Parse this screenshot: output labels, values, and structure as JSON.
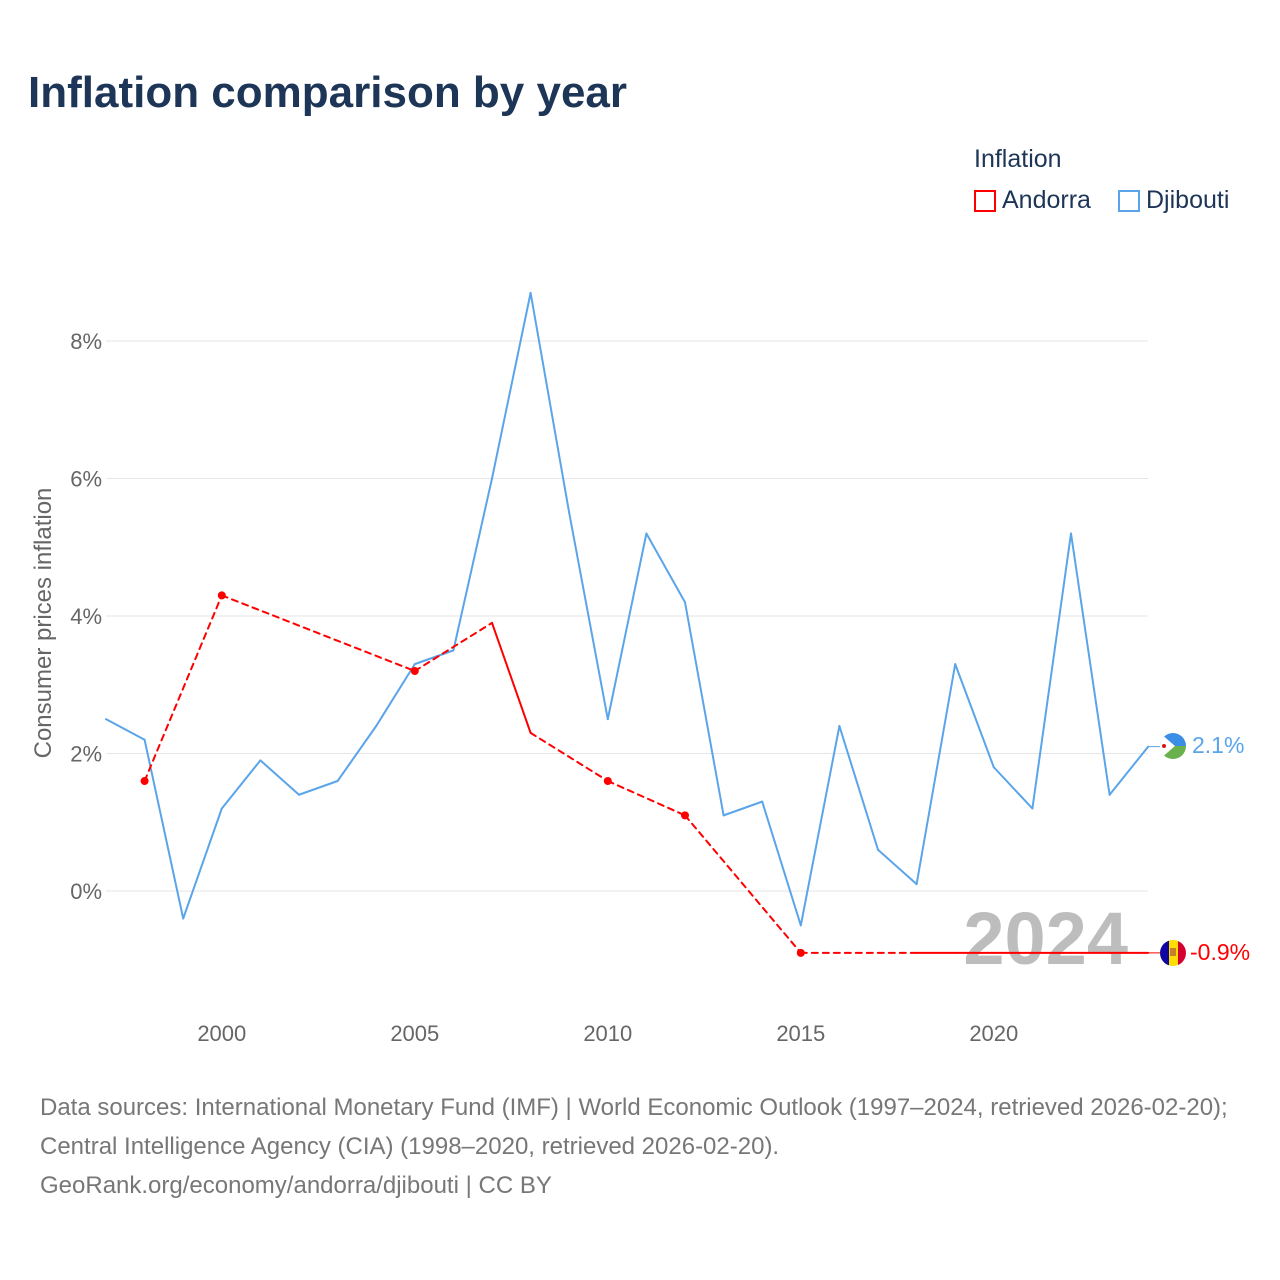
{
  "title": "Inflation comparison by year",
  "legend": {
    "title": "Inflation",
    "items": [
      {
        "name": "Andorra",
        "color": "#ff0000"
      },
      {
        "name": "Djibouti",
        "color": "#5aa5ea"
      }
    ]
  },
  "watermark_year": "2024",
  "end_labels": {
    "djibouti": "2.1%",
    "andorra": "-0.9%"
  },
  "sources": "Data sources: International Monetary Fund (IMF) | World Economic Outlook (1997–2024, retrieved 2026-02-20); Central Intelligence Agency (CIA) (1998–2020, retrieved 2026-02-20).",
  "credit": "GeoRank.org/economy/andorra/djibouti | CC BY",
  "chart_data": {
    "type": "line",
    "title": "Inflation comparison by year",
    "xlabel": "",
    "ylabel": "Consumer prices inflation",
    "xlim": [
      1997,
      2024
    ],
    "ylim": [
      -1.6,
      9.0
    ],
    "xticks": [
      2000,
      2005,
      2010,
      2015,
      2020
    ],
    "yticks": [
      0,
      2,
      4,
      6,
      8
    ],
    "ytick_labels": [
      "0%",
      "2%",
      "4%",
      "6%",
      "8%"
    ],
    "grid": true,
    "legend_position": "top-right",
    "series": [
      {
        "name": "Andorra",
        "color": "#ff0000",
        "x": [
          1998,
          2000,
          2005,
          2007,
          2008,
          2010,
          2012,
          2015,
          2018,
          2019,
          2020,
          2021,
          2022,
          2023,
          2024
        ],
        "values": [
          1.6,
          4.3,
          3.2,
          3.9,
          2.3,
          1.6,
          1.1,
          -0.9,
          -0.9,
          -0.9,
          -0.9,
          -0.9,
          -0.9,
          -0.9,
          -0.9
        ]
      },
      {
        "name": "Djibouti",
        "color": "#5aa5ea",
        "x": [
          1997,
          1998,
          1999,
          2000,
          2001,
          2002,
          2003,
          2004,
          2005,
          2006,
          2007,
          2008,
          2009,
          2010,
          2011,
          2012,
          2013,
          2014,
          2015,
          2016,
          2017,
          2018,
          2019,
          2020,
          2021,
          2022,
          2023,
          2024
        ],
        "values": [
          2.5,
          2.2,
          -0.4,
          1.2,
          1.9,
          1.4,
          1.6,
          2.4,
          3.3,
          3.5,
          6.0,
          8.7,
          5.5,
          2.5,
          5.2,
          4.2,
          1.1,
          1.3,
          -0.5,
          2.4,
          0.6,
          0.1,
          3.3,
          1.8,
          1.2,
          5.2,
          1.4,
          2.1
        ]
      }
    ]
  }
}
